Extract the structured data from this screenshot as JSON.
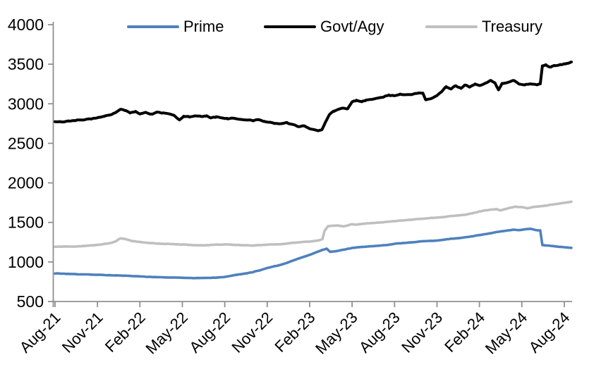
{
  "chart_data": {
    "type": "line",
    "title": "",
    "xlabel": "",
    "ylabel": "",
    "grid": false,
    "legend_position": "top",
    "ylim": [
      500,
      4000
    ],
    "y_ticks": [
      4000,
      3500,
      3000,
      2500,
      2000,
      1500,
      1000,
      500
    ],
    "x_tick_labels": [
      "Aug-21",
      "Nov-21",
      "Feb-22",
      "May-22",
      "Aug-22",
      "Nov-22",
      "Feb-23",
      "May-23",
      "Aug-23",
      "Nov-23",
      "Feb-24",
      "May-24",
      "Aug-24"
    ],
    "x_tick_months": [
      0,
      3,
      6,
      9,
      12,
      15,
      18,
      21,
      24,
      27,
      30,
      33,
      36
    ],
    "x_unit": "months since Aug-2021",
    "x_range_months": [
      0,
      36.5
    ],
    "x_label_rotation": -45,
    "series": [
      {
        "name": "Prime",
        "color": "#4F81BD",
        "seed": 7,
        "jitter": 2.2,
        "points": [
          [
            0,
            856
          ],
          [
            1,
            849
          ],
          [
            2,
            843
          ],
          [
            3,
            838
          ],
          [
            4,
            832
          ],
          [
            5,
            825
          ],
          [
            6,
            817
          ],
          [
            7,
            809
          ],
          [
            8,
            804
          ],
          [
            9,
            800
          ],
          [
            10,
            797
          ],
          [
            10.8,
            798
          ],
          [
            11.5,
            803
          ],
          [
            12,
            810
          ],
          [
            12.6,
            830
          ],
          [
            13,
            842
          ],
          [
            13.5,
            855
          ],
          [
            14,
            872
          ],
          [
            14.5,
            895
          ],
          [
            15,
            923
          ],
          [
            15.5,
            945
          ],
          [
            16,
            965
          ],
          [
            16.5,
            995
          ],
          [
            17,
            1030
          ],
          [
            17.5,
            1060
          ],
          [
            18,
            1090
          ],
          [
            18.5,
            1125
          ],
          [
            18.9,
            1152
          ],
          [
            19.2,
            1168
          ],
          [
            19.45,
            1128
          ],
          [
            19.8,
            1135
          ],
          [
            20.2,
            1148
          ],
          [
            20.6,
            1162
          ],
          [
            21,
            1178
          ],
          [
            21.5,
            1186
          ],
          [
            22,
            1194
          ],
          [
            22.5,
            1200
          ],
          [
            23,
            1208
          ],
          [
            23.5,
            1214
          ],
          [
            24,
            1230
          ],
          [
            24.5,
            1238
          ],
          [
            25,
            1245
          ],
          [
            25.5,
            1252
          ],
          [
            26,
            1262
          ],
          [
            26.5,
            1266
          ],
          [
            27,
            1270
          ],
          [
            27.5,
            1282
          ],
          [
            28,
            1294
          ],
          [
            28.5,
            1300
          ],
          [
            29,
            1312
          ],
          [
            29.5,
            1325
          ],
          [
            30,
            1340
          ],
          [
            30.5,
            1355
          ],
          [
            31,
            1370
          ],
          [
            31.5,
            1385
          ],
          [
            32,
            1398
          ],
          [
            32.4,
            1408
          ],
          [
            32.8,
            1403
          ],
          [
            33.2,
            1412
          ],
          [
            33.6,
            1418
          ],
          [
            34,
            1402
          ],
          [
            34.3,
            1398
          ],
          [
            34.45,
            1212
          ],
          [
            34.8,
            1208
          ],
          [
            35.2,
            1200
          ],
          [
            35.6,
            1192
          ],
          [
            36,
            1186
          ],
          [
            36.5,
            1178
          ]
        ]
      },
      {
        "name": "Govt/Agy",
        "color": "#000000",
        "seed": 3,
        "jitter": 6,
        "points": [
          [
            0,
            2775
          ],
          [
            0.5,
            2772
          ],
          [
            1,
            2780
          ],
          [
            1.5,
            2790
          ],
          [
            2,
            2798
          ],
          [
            2.5,
            2808
          ],
          [
            3,
            2822
          ],
          [
            3.5,
            2840
          ],
          [
            4,
            2866
          ],
          [
            4.3,
            2890
          ],
          [
            4.6,
            2928
          ],
          [
            5,
            2915
          ],
          [
            5.3,
            2880
          ],
          [
            5.7,
            2900
          ],
          [
            6,
            2872
          ],
          [
            6.4,
            2890
          ],
          [
            6.8,
            2868
          ],
          [
            7.2,
            2892
          ],
          [
            7.6,
            2885
          ],
          [
            8,
            2875
          ],
          [
            8.4,
            2855
          ],
          [
            8.8,
            2795
          ],
          [
            9.1,
            2842
          ],
          [
            9.5,
            2835
          ],
          [
            9.9,
            2850
          ],
          [
            10.3,
            2838
          ],
          [
            10.7,
            2848
          ],
          [
            11,
            2822
          ],
          [
            11.4,
            2835
          ],
          [
            11.8,
            2818
          ],
          [
            12.2,
            2812
          ],
          [
            12.6,
            2818
          ],
          [
            13,
            2802
          ],
          [
            13.5,
            2795
          ],
          [
            14,
            2788
          ],
          [
            14.4,
            2800
          ],
          [
            14.8,
            2775
          ],
          [
            15.2,
            2762
          ],
          [
            15.6,
            2752
          ],
          [
            16,
            2745
          ],
          [
            16.4,
            2758
          ],
          [
            16.8,
            2738
          ],
          [
            17.2,
            2712
          ],
          [
            17.6,
            2722
          ],
          [
            18,
            2688
          ],
          [
            18.3,
            2672
          ],
          [
            18.6,
            2655
          ],
          [
            18.85,
            2668
          ],
          [
            19.1,
            2760
          ],
          [
            19.4,
            2868
          ],
          [
            19.7,
            2905
          ],
          [
            20,
            2928
          ],
          [
            20.3,
            2945
          ],
          [
            20.7,
            2938
          ],
          [
            21,
            3028
          ],
          [
            21.3,
            3042
          ],
          [
            21.7,
            3030
          ],
          [
            22,
            3048
          ],
          [
            22.4,
            3060
          ],
          [
            22.8,
            3072
          ],
          [
            23.2,
            3085
          ],
          [
            23.6,
            3108
          ],
          [
            24,
            3098
          ],
          [
            24.4,
            3122
          ],
          [
            24.8,
            3112
          ],
          [
            25.2,
            3118
          ],
          [
            25.6,
            3132
          ],
          [
            26,
            3138
          ],
          [
            26.2,
            3052
          ],
          [
            26.6,
            3065
          ],
          [
            27,
            3105
          ],
          [
            27.3,
            3148
          ],
          [
            27.65,
            3215
          ],
          [
            28,
            3188
          ],
          [
            28.3,
            3228
          ],
          [
            28.7,
            3195
          ],
          [
            29,
            3238
          ],
          [
            29.3,
            3212
          ],
          [
            29.7,
            3248
          ],
          [
            30,
            3232
          ],
          [
            30.4,
            3258
          ],
          [
            30.8,
            3295
          ],
          [
            31.1,
            3260
          ],
          [
            31.35,
            3172
          ],
          [
            31.6,
            3255
          ],
          [
            32,
            3268
          ],
          [
            32.4,
            3298
          ],
          [
            32.8,
            3252
          ],
          [
            33.2,
            3238
          ],
          [
            33.6,
            3250
          ],
          [
            34,
            3240
          ],
          [
            34.3,
            3250
          ],
          [
            34.45,
            3478
          ],
          [
            34.7,
            3492
          ],
          [
            34.95,
            3465
          ],
          [
            35.3,
            3480
          ],
          [
            35.7,
            3492
          ],
          [
            36.1,
            3506
          ],
          [
            36.5,
            3528
          ]
        ]
      },
      {
        "name": "Treasury",
        "color": "#BFBFBF",
        "seed": 11,
        "jitter": 3,
        "points": [
          [
            0,
            1192
          ],
          [
            0.5,
            1194
          ],
          [
            1,
            1196
          ],
          [
            1.5,
            1194
          ],
          [
            2,
            1202
          ],
          [
            2.5,
            1208
          ],
          [
            3,
            1216
          ],
          [
            3.5,
            1228
          ],
          [
            4,
            1242
          ],
          [
            4.3,
            1262
          ],
          [
            4.6,
            1298
          ],
          [
            5,
            1288
          ],
          [
            5.4,
            1268
          ],
          [
            6,
            1252
          ],
          [
            6.5,
            1242
          ],
          [
            7,
            1236
          ],
          [
            7.5,
            1230
          ],
          [
            8,
            1228
          ],
          [
            8.5,
            1224
          ],
          [
            9,
            1220
          ],
          [
            9.5,
            1216
          ],
          [
            10,
            1212
          ],
          [
            10.5,
            1210
          ],
          [
            11,
            1216
          ],
          [
            11.5,
            1220
          ],
          [
            12,
            1221
          ],
          [
            12.5,
            1218
          ],
          [
            13,
            1214
          ],
          [
            13.5,
            1210
          ],
          [
            14,
            1208
          ],
          [
            14.5,
            1214
          ],
          [
            15,
            1219
          ],
          [
            15.5,
            1222
          ],
          [
            16,
            1226
          ],
          [
            16.5,
            1235
          ],
          [
            17,
            1245
          ],
          [
            17.5,
            1252
          ],
          [
            18,
            1258
          ],
          [
            18.5,
            1268
          ],
          [
            18.9,
            1288
          ],
          [
            19.05,
            1390
          ],
          [
            19.3,
            1452
          ],
          [
            19.6,
            1458
          ],
          [
            20,
            1462
          ],
          [
            20.4,
            1450
          ],
          [
            20.8,
            1468
          ],
          [
            21,
            1478
          ],
          [
            21.3,
            1470
          ],
          [
            21.7,
            1482
          ],
          [
            22,
            1488
          ],
          [
            22.5,
            1494
          ],
          [
            23,
            1500
          ],
          [
            23.5,
            1508
          ],
          [
            24,
            1516
          ],
          [
            24.5,
            1524
          ],
          [
            25,
            1532
          ],
          [
            25.5,
            1540
          ],
          [
            26,
            1548
          ],
          [
            26.5,
            1555
          ],
          [
            27,
            1562
          ],
          [
            27.5,
            1570
          ],
          [
            28,
            1580
          ],
          [
            28.5,
            1588
          ],
          [
            29,
            1598
          ],
          [
            29.5,
            1615
          ],
          [
            30,
            1638
          ],
          [
            30.4,
            1652
          ],
          [
            30.8,
            1660
          ],
          [
            31.2,
            1668
          ],
          [
            31.5,
            1652
          ],
          [
            31.8,
            1668
          ],
          [
            32.2,
            1688
          ],
          [
            32.6,
            1700
          ],
          [
            33,
            1692
          ],
          [
            33.4,
            1680
          ],
          [
            33.8,
            1695
          ],
          [
            34.2,
            1702
          ],
          [
            34.6,
            1710
          ],
          [
            35,
            1722
          ],
          [
            35.5,
            1735
          ],
          [
            36,
            1748
          ],
          [
            36.5,
            1762
          ]
        ]
      }
    ]
  },
  "colors": {
    "background": "#FFFFFF",
    "axis": "#909090",
    "text": "#000000",
    "prime": "#4F81BD",
    "govt_agy": "#000000",
    "treasury": "#BFBFBF"
  }
}
